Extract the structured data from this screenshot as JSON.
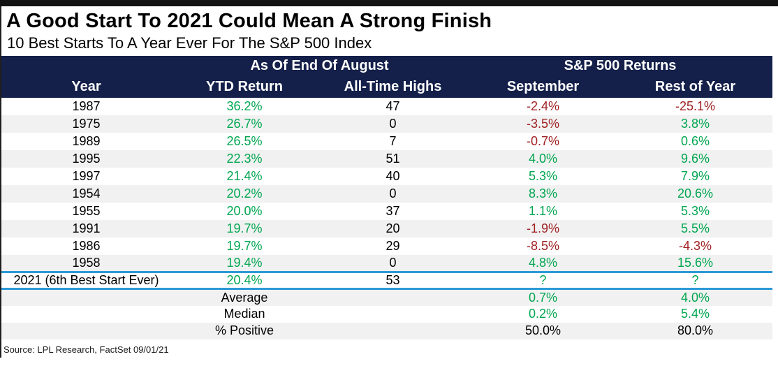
{
  "header": {
    "title": "A Good Start To 2021 Could Mean A Strong Finish",
    "subtitle": "10 Best Starts To A Year Ever For The S&P 500 Index"
  },
  "footer": {
    "source": "Source: LPL Research, FactSet 09/01/21"
  },
  "colors": {
    "header_bg": "#14204a",
    "positive_green": "#00a650",
    "negative_red": "#a02123",
    "row_alt_gray": "#f1f1f1",
    "highlight_border_blue": "#2b9ad6",
    "top_bar_black": "#131313"
  },
  "chart_data": {
    "type": "table",
    "title": "A Good Start To 2021 Could Mean A Strong Finish",
    "subtitle": "10 Best Starts To A Year Ever For The S&P 500 Index",
    "group_headers": [
      {
        "label": "As Of End Of August",
        "spans_columns": [
          "YTD Return",
          "All-Time Highs"
        ]
      },
      {
        "label": "S&P 500 Returns",
        "spans_columns": [
          "September",
          "Rest of Year"
        ]
      }
    ],
    "columns": [
      "Year",
      "YTD Return",
      "All-Time Highs",
      "September",
      "Rest of Year"
    ],
    "rows": [
      [
        "1987",
        "36.2%",
        "47",
        "-2.4%",
        "-25.1%"
      ],
      [
        "1975",
        "26.7%",
        "0",
        "-3.5%",
        "3.8%"
      ],
      [
        "1989",
        "26.5%",
        "7",
        "-0.7%",
        "0.6%"
      ],
      [
        "1995",
        "22.3%",
        "51",
        "4.0%",
        "9.6%"
      ],
      [
        "1997",
        "21.4%",
        "40",
        "5.3%",
        "7.9%"
      ],
      [
        "1954",
        "20.2%",
        "0",
        "8.3%",
        "20.6%"
      ],
      [
        "1955",
        "20.0%",
        "37",
        "1.1%",
        "5.3%"
      ],
      [
        "1991",
        "19.7%",
        "20",
        "-1.9%",
        "5.5%"
      ],
      [
        "1986",
        "19.7%",
        "29",
        "-8.5%",
        "-4.3%"
      ],
      [
        "1958",
        "19.4%",
        "0",
        "4.8%",
        "15.6%"
      ]
    ],
    "highlight_row": [
      "2021 (6th Best Start Ever)",
      "20.4%",
      "53",
      "?",
      "?"
    ],
    "summary_rows": [
      {
        "label": "Average",
        "september": "0.7%",
        "rest_of_year": "4.0%",
        "neutral": false
      },
      {
        "label": "Median",
        "september": "0.2%",
        "rest_of_year": "5.4%",
        "neutral": false
      },
      {
        "label": "% Positive",
        "september": "50.0%",
        "rest_of_year": "80.0%",
        "neutral": true
      }
    ],
    "source": "Source: LPL Research, FactSet 09/01/21"
  }
}
